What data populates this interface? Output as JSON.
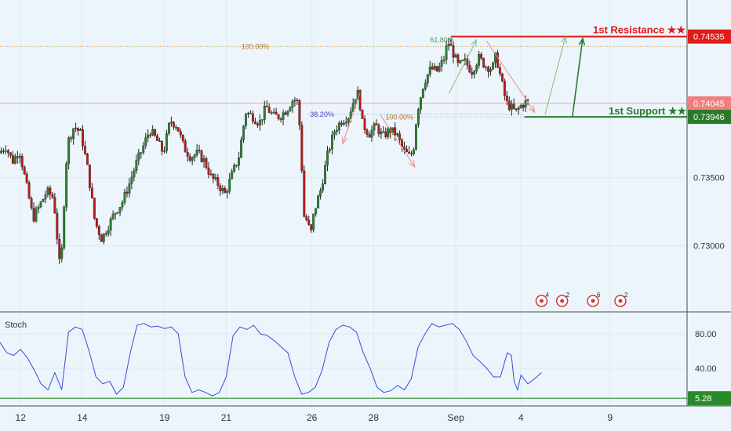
{
  "chart_data": {
    "type": "candlestick",
    "instrument_note": "",
    "price_axis": {
      "ylim": [
        0.7255,
        0.7478
      ],
      "ticks": [
        {
          "value": 0.735,
          "label": "0.73500"
        },
        {
          "value": 0.73,
          "label": "0.73000"
        }
      ]
    },
    "x_axis": {
      "xlim": [
        0,
        100
      ],
      "ticks": [
        {
          "x": 3.0,
          "label": "12"
        },
        {
          "x": 12.0,
          "label": "14"
        },
        {
          "x": 24.0,
          "label": "19"
        },
        {
          "x": 33.0,
          "label": "21"
        },
        {
          "x": 45.5,
          "label": "26"
        },
        {
          "x": 54.5,
          "label": "28"
        },
        {
          "x": 66.5,
          "label": "Sep"
        },
        {
          "x": 76.0,
          "label": "4"
        },
        {
          "x": 89.0,
          "label": "9"
        }
      ]
    },
    "price_path": [
      [
        0,
        0.7368
      ],
      [
        1,
        0.7373
      ],
      [
        2,
        0.7362
      ],
      [
        3,
        0.737
      ],
      [
        4,
        0.7345
      ],
      [
        5,
        0.732
      ],
      [
        6,
        0.733
      ],
      [
        7,
        0.734
      ],
      [
        8,
        0.7335
      ],
      [
        9,
        0.7278
      ],
      [
        9.5,
        0.733
      ],
      [
        10,
        0.7375
      ],
      [
        11,
        0.7388
      ],
      [
        12,
        0.7382
      ],
      [
        13,
        0.7355
      ],
      [
        14,
        0.7318
      ],
      [
        15,
        0.7305
      ],
      [
        16,
        0.7315
      ],
      [
        17,
        0.7325
      ],
      [
        18,
        0.7332
      ],
      [
        19,
        0.7345
      ],
      [
        20,
        0.736
      ],
      [
        21,
        0.7372
      ],
      [
        22,
        0.7385
      ],
      [
        23,
        0.7378
      ],
      [
        24,
        0.7368
      ],
      [
        25,
        0.7392
      ],
      [
        26,
        0.7388
      ],
      [
        27,
        0.7372
      ],
      [
        28,
        0.7365
      ],
      [
        29,
        0.7368
      ],
      [
        30,
        0.7362
      ],
      [
        31,
        0.735
      ],
      [
        32,
        0.7345
      ],
      [
        33,
        0.7338
      ],
      [
        34,
        0.7352
      ],
      [
        35,
        0.7365
      ],
      [
        36,
        0.7398
      ],
      [
        37,
        0.7395
      ],
      [
        38,
        0.739
      ],
      [
        39,
        0.7402
      ],
      [
        40,
        0.7395
      ],
      [
        41,
        0.7395
      ],
      [
        42,
        0.74
      ],
      [
        43,
        0.7408
      ],
      [
        43.6,
        0.7405
      ],
      [
        44,
        0.738
      ],
      [
        44.5,
        0.7322
      ],
      [
        45,
        0.7318
      ],
      [
        45.5,
        0.7308
      ],
      [
        46,
        0.7325
      ],
      [
        47,
        0.7342
      ],
      [
        48,
        0.7368
      ],
      [
        49,
        0.7385
      ],
      [
        50,
        0.7392
      ],
      [
        51,
        0.7395
      ],
      [
        52,
        0.741
      ],
      [
        52.5,
        0.7412
      ],
      [
        53,
        0.739
      ],
      [
        54,
        0.7382
      ],
      [
        55,
        0.7388
      ],
      [
        56,
        0.738
      ],
      [
        57,
        0.7385
      ],
      [
        58,
        0.7382
      ],
      [
        59,
        0.737
      ],
      [
        60,
        0.7365
      ],
      [
        60.5,
        0.7372
      ],
      [
        61,
        0.7398
      ],
      [
        62,
        0.742
      ],
      [
        63,
        0.743
      ],
      [
        64,
        0.7428
      ],
      [
        65,
        0.7438
      ],
      [
        65.5,
        0.745
      ],
      [
        66,
        0.7445
      ],
      [
        67,
        0.7432
      ],
      [
        68,
        0.7435
      ],
      [
        69,
        0.7428
      ],
      [
        70,
        0.7438
      ],
      [
        71,
        0.7432
      ],
      [
        72,
        0.743
      ],
      [
        72.5,
        0.744
      ],
      [
        73,
        0.7428
      ],
      [
        74,
        0.7405
      ],
      [
        75,
        0.74
      ],
      [
        75.5,
        0.7398
      ],
      [
        76,
        0.7402
      ],
      [
        77,
        0.7406
      ]
    ],
    "price_levels": [
      {
        "kind": "resistance",
        "label": "1st Resistance ★★",
        "value": 0.74535,
        "value_label": "0.74535",
        "color": "#e01b1b"
      },
      {
        "kind": "current",
        "label": "",
        "value": 0.74045,
        "value_label": "0.74045",
        "color": "#f08080"
      },
      {
        "kind": "support",
        "label": "1st Support ★★",
        "value": 0.73946,
        "value_label": "0.73946",
        "color": "#2a7a2a"
      }
    ],
    "fibonacci_labels": [
      {
        "text": "100.00%",
        "x": 35.0,
        "y": 0.74462
      },
      {
        "text": "38.20%",
        "x": 45.0,
        "y": 0.73965
      },
      {
        "text": "100.00%",
        "x": 56.0,
        "y": 0.73945
      },
      {
        "text": "61.80%",
        "x": 62.5,
        "y": 0.7451
      }
    ],
    "event_markers": [
      {
        "x": 79.0,
        "count": "4"
      },
      {
        "x": 82.0,
        "count": "2"
      },
      {
        "x": 86.5,
        "count": "6"
      },
      {
        "x": 90.5,
        "count": "2"
      }
    ],
    "oscillator": {
      "name": "Stoch",
      "ylim": [
        0,
        100
      ],
      "ticks": [
        {
          "value": 80,
          "label": "80.00"
        },
        {
          "value": 40,
          "label": "40.00"
        }
      ],
      "level": {
        "value": 5.28,
        "label": "5.28",
        "color": "#2a8a2a"
      },
      "values": [
        [
          0,
          70
        ],
        [
          1,
          58
        ],
        [
          2,
          55
        ],
        [
          3,
          62
        ],
        [
          4,
          52
        ],
        [
          5,
          38
        ],
        [
          6,
          22
        ],
        [
          7,
          15
        ],
        [
          8,
          35
        ],
        [
          9,
          15
        ],
        [
          10,
          82
        ],
        [
          11,
          88
        ],
        [
          12,
          85
        ],
        [
          13,
          60
        ],
        [
          14,
          30
        ],
        [
          15,
          22
        ],
        [
          16,
          25
        ],
        [
          17,
          10
        ],
        [
          18,
          18
        ],
        [
          19,
          58
        ],
        [
          20,
          90
        ],
        [
          21,
          92
        ],
        [
          22,
          88
        ],
        [
          23,
          89
        ],
        [
          24,
          86
        ],
        [
          25,
          88
        ],
        [
          26,
          80
        ],
        [
          27,
          30
        ],
        [
          28,
          12
        ],
        [
          29,
          15
        ],
        [
          30,
          12
        ],
        [
          31,
          8
        ],
        [
          32,
          12
        ],
        [
          33,
          30
        ],
        [
          34,
          78
        ],
        [
          35,
          88
        ],
        [
          36,
          85
        ],
        [
          37,
          90
        ],
        [
          38,
          80
        ],
        [
          39,
          78
        ],
        [
          40,
          72
        ],
        [
          41,
          65
        ],
        [
          42,
          58
        ],
        [
          43,
          30
        ],
        [
          44,
          10
        ],
        [
          45,
          12
        ],
        [
          46,
          18
        ],
        [
          47,
          38
        ],
        [
          48,
          70
        ],
        [
          49,
          85
        ],
        [
          50,
          90
        ],
        [
          51,
          88
        ],
        [
          52,
          82
        ],
        [
          53,
          58
        ],
        [
          54,
          40
        ],
        [
          55,
          18
        ],
        [
          56,
          12
        ],
        [
          57,
          14
        ],
        [
          58,
          20
        ],
        [
          59,
          15
        ],
        [
          60,
          28
        ],
        [
          61,
          65
        ],
        [
          62,
          80
        ],
        [
          63,
          92
        ],
        [
          64,
          88
        ],
        [
          65,
          90
        ],
        [
          66,
          92
        ],
        [
          67,
          85
        ],
        [
          68,
          72
        ],
        [
          69,
          55
        ],
        [
          70,
          48
        ],
        [
          71,
          40
        ],
        [
          72,
          30
        ],
        [
          73,
          30
        ],
        [
          74,
          58
        ],
        [
          74.6,
          55
        ],
        [
          75,
          25
        ],
        [
          75.5,
          15
        ],
        [
          76,
          32
        ],
        [
          77,
          22
        ],
        [
          78,
          28
        ],
        [
          79,
          35
        ]
      ]
    }
  }
}
